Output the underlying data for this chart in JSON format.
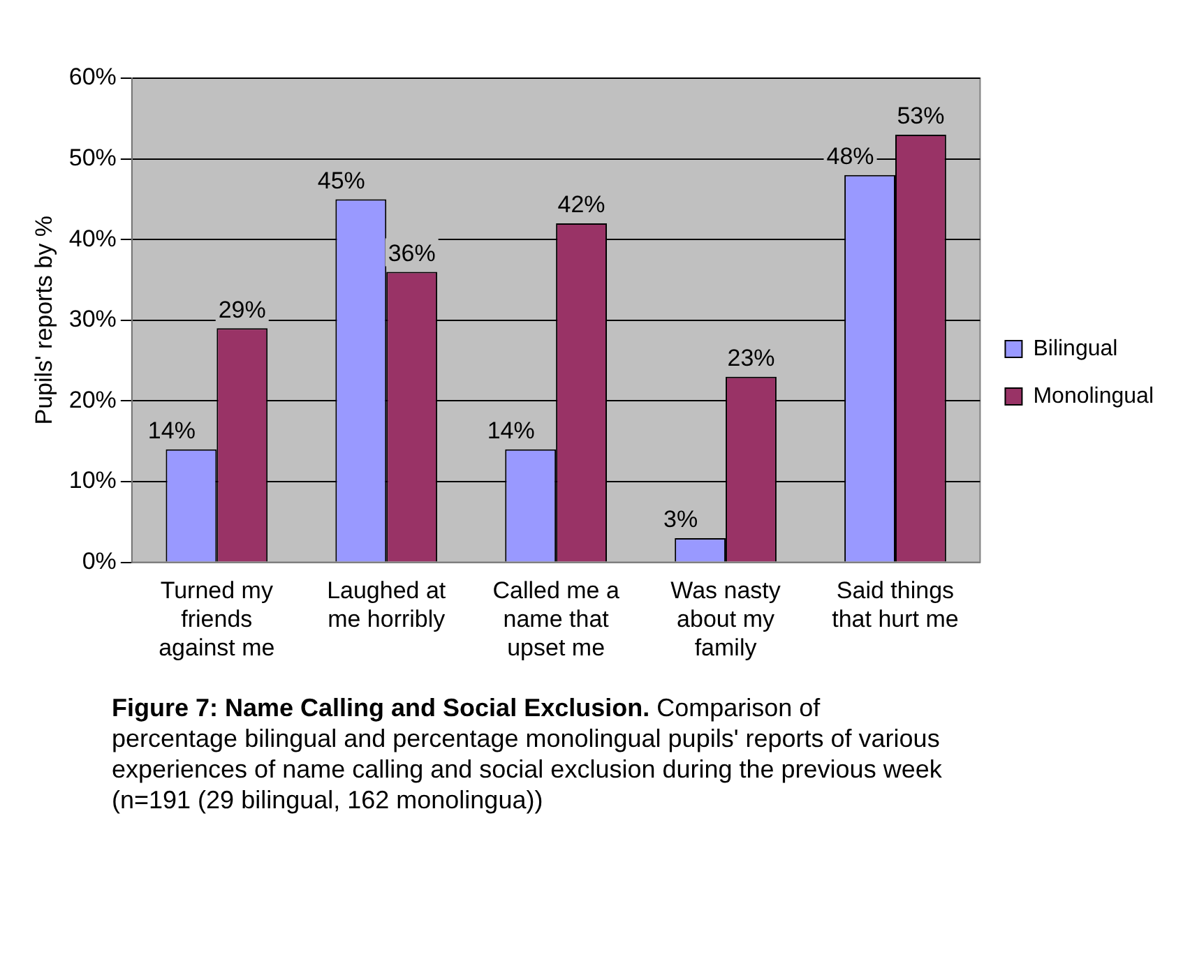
{
  "chart_data": {
    "type": "bar",
    "categories": [
      "Turned my friends against me",
      "Laughed at me horribly",
      "Called me a name that upset me",
      "Was nasty about my family",
      "Said things that hurt me"
    ],
    "series": [
      {
        "name": "Bilingual",
        "color": "#9999ff",
        "values": [
          14,
          45,
          14,
          3,
          48
        ],
        "value_labels": [
          "14%",
          "45%",
          "14%",
          "3%",
          "48%"
        ]
      },
      {
        "name": "Monolingual",
        "color": "#993366",
        "values": [
          29,
          36,
          42,
          23,
          53
        ],
        "value_labels": [
          "29%",
          "36%",
          "42%",
          "23%",
          "53%"
        ]
      }
    ],
    "ylabel": "Pupils' reports by %",
    "ylim": [
      0,
      60
    ],
    "yticks": [
      {
        "value": 0,
        "label": "0%"
      },
      {
        "value": 10,
        "label": "10%"
      },
      {
        "value": 20,
        "label": "20%"
      },
      {
        "value": 30,
        "label": "30%"
      },
      {
        "value": 40,
        "label": "40%"
      },
      {
        "value": 50,
        "label": "50%"
      },
      {
        "value": 60,
        "label": "60%"
      }
    ],
    "grid": "y",
    "legend": "right",
    "annotations": [
      "Figure 7: Name Calling and Social Exclusion.",
      "Comparison of percentage bilingual and percentage monolingual pupils' reports of various experiences of name calling and social exclusion during the previous week (n=191 (29 bilingual, 162 monolingua))"
    ]
  }
}
